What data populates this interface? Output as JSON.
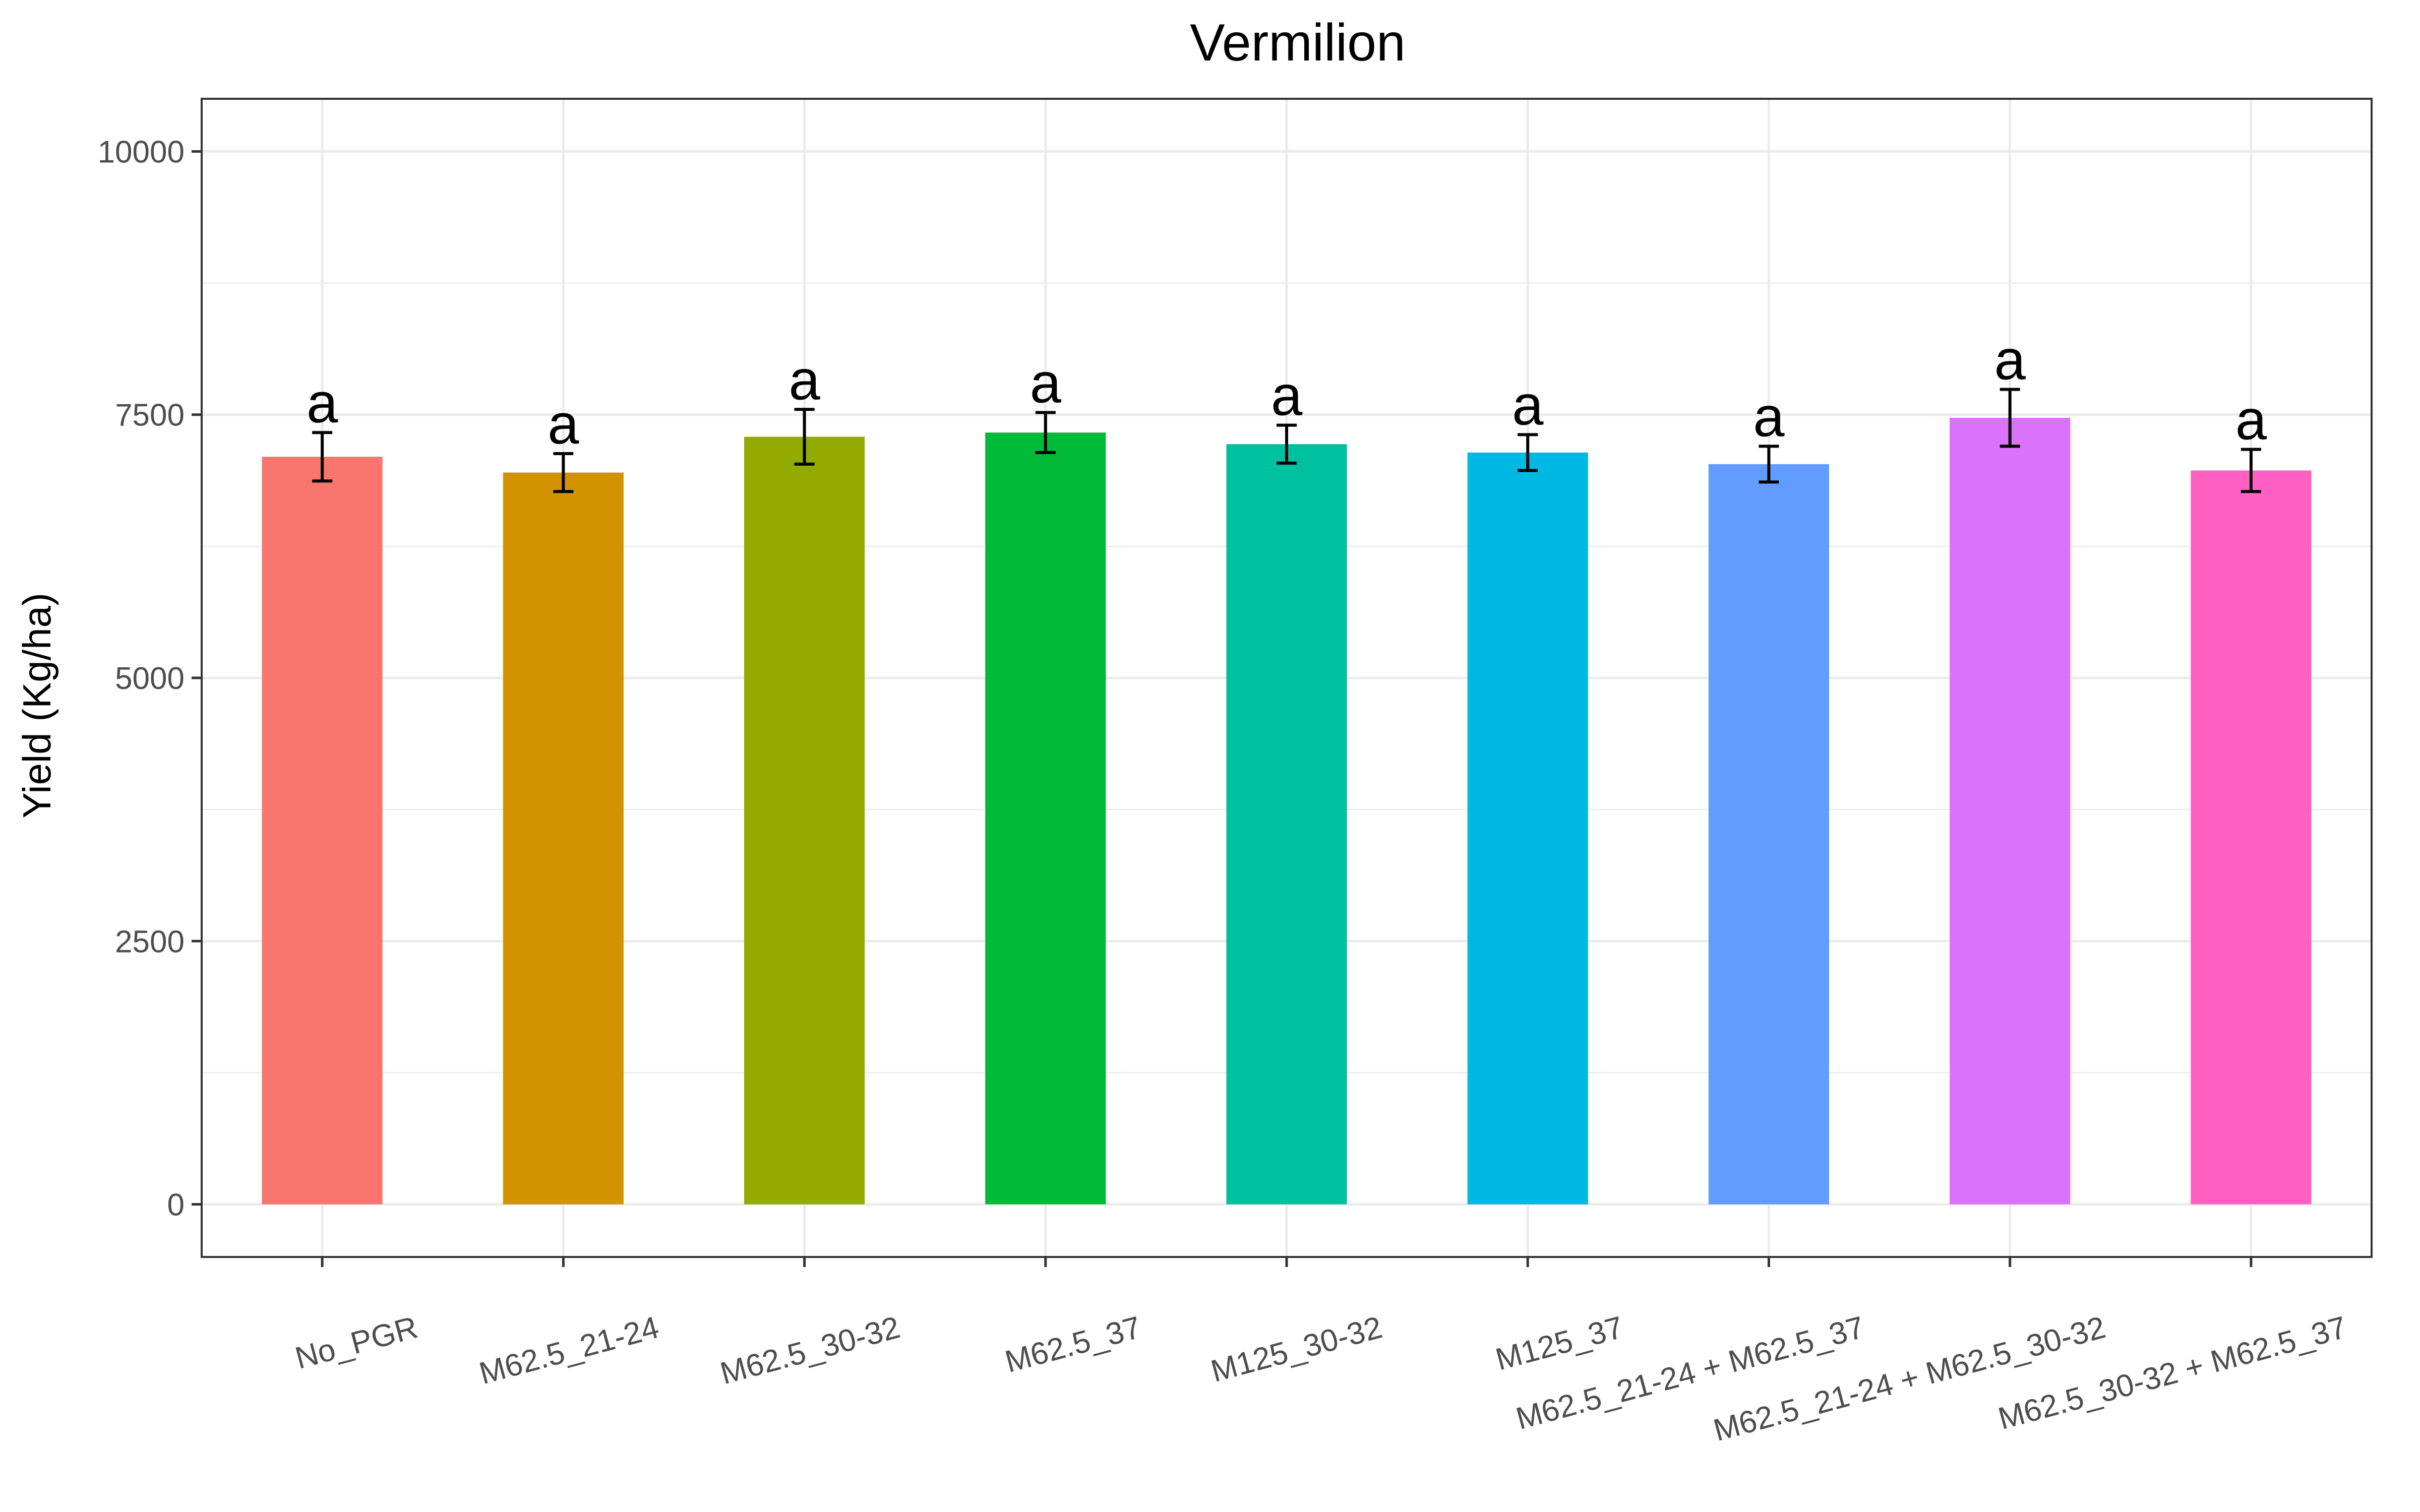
{
  "chart_data": {
    "type": "bar",
    "title": "Vermilion",
    "xlabel": "",
    "ylabel": "Yield (Kg/ha)",
    "ylim": [
      -500,
      10500
    ],
    "yticks": [
      0,
      2500,
      5000,
      7500,
      10000
    ],
    "grid": true,
    "legend": "none",
    "categories": [
      "No_PGR",
      "M62.5_21-24",
      "M62.5_30-32",
      "M62.5_37",
      "M125_30-32",
      "M125_37",
      "M62.5_21-24 + M62.5_37",
      "M62.5_21-24 + M62.5_30-32",
      "M62.5_30-32 + M62.5_37"
    ],
    "values": [
      7100,
      6950,
      7290,
      7330,
      7220,
      7140,
      7030,
      7470,
      6970
    ],
    "error": [
      230,
      180,
      260,
      190,
      180,
      170,
      170,
      270,
      200
    ],
    "significance": [
      "a",
      "a",
      "a",
      "a",
      "a",
      "a",
      "a",
      "a",
      "a"
    ],
    "colors": [
      "#F8766D",
      "#D39200",
      "#93AA00",
      "#00BA38",
      "#00C19F",
      "#00B9E3",
      "#619CFF",
      "#DB72FB",
      "#FF61C3"
    ]
  }
}
